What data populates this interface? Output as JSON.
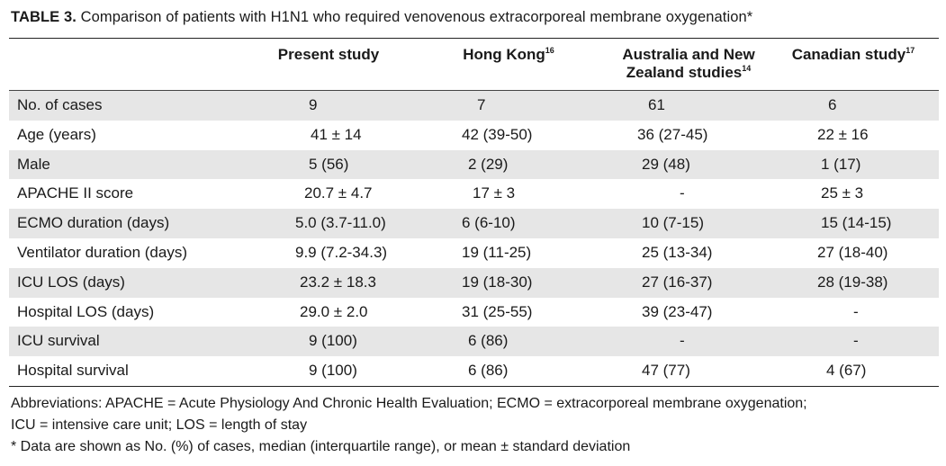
{
  "caption": {
    "label": "TABLE 3.",
    "text": "Comparison of patients with H1N1 who required venovenous extracorporeal membrane oxygenation*"
  },
  "columns": [
    {
      "label": "Present study",
      "sup": ""
    },
    {
      "label": "Hong Kong",
      "sup": "16"
    },
    {
      "label_line1": "Australia and New",
      "label_line2": "Zealand studies",
      "sup": "14"
    },
    {
      "label": "Canadian study",
      "sup": "17"
    }
  ],
  "rows": [
    {
      "label": "No. of cases",
      "values": [
        "9",
        "7",
        "61",
        "6"
      ]
    },
    {
      "label": "Age (years)",
      "values": [
        "41 ± 14",
        "42 (39-50)",
        "36 (27-45)",
        "22 ± 16"
      ]
    },
    {
      "label": "Male",
      "values": [
        "5 (56)",
        "2 (29)",
        "29 (48)",
        "1 (17)"
      ]
    },
    {
      "label": "APACHE II score",
      "values": [
        "20.7 ± 4.7",
        "17 ± 3",
        "-",
        "25 ± 3"
      ]
    },
    {
      "label": "ECMO duration (days)",
      "values": [
        "5.0 (3.7-11.0)",
        "6 (6-10)",
        "10 (7-15)",
        "15 (14-15)"
      ]
    },
    {
      "label": "Ventilator duration (days)",
      "values": [
        "9.9 (7.2-34.3)",
        "19 (11-25)",
        "25 (13-34)",
        "27 (18-40)"
      ]
    },
    {
      "label": "ICU LOS (days)",
      "values": [
        "23.2 ± 18.3",
        "19 (18-30)",
        "27 (16-37)",
        "28 (19-38)"
      ]
    },
    {
      "label": "Hospital LOS (days)",
      "values": [
        "29.0 ± 2.0",
        "31 (25-55)",
        "39 (23-47)",
        "-"
      ]
    },
    {
      "label": "ICU survival",
      "values": [
        "9 (100)",
        "6 (86)",
        "-",
        "-"
      ]
    },
    {
      "label": "Hospital survival",
      "values": [
        "9 (100)",
        "6 (86)",
        "47 (77)",
        "4 (67)"
      ]
    }
  ],
  "notes": {
    "abbrev1": "Abbreviations: APACHE = Acute Physiology And Chronic Health Evaluation; ECMO = extracorporeal membrane oxygenation;",
    "abbrev2": "ICU = intensive care unit; LOS = length of stay",
    "footnote": "*   Data are shown as No. (%) of cases, median (interquartile range), or mean ± standard deviation"
  }
}
